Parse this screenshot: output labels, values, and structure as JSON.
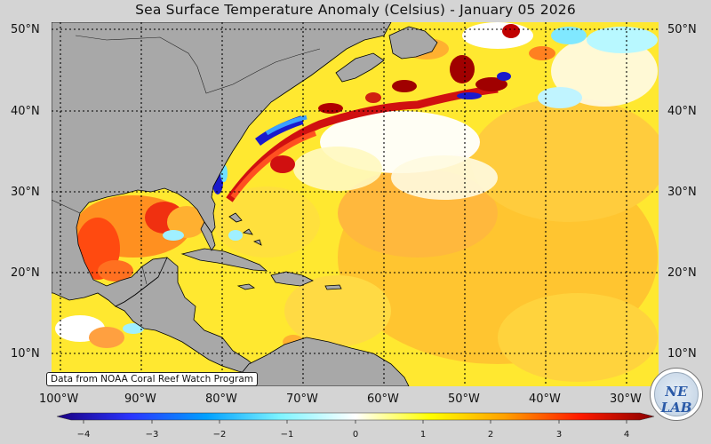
{
  "title": "Sea Surface Temperature Anomaly (Celsius) - January 05 2026",
  "latitude_labels": [
    "50°N",
    "40°N",
    "30°N",
    "20°N",
    "10°N"
  ],
  "longitude_labels": [
    "100°W",
    "90°W",
    "80°W",
    "70°W",
    "60°W",
    "50°W",
    "40°W",
    "30°W"
  ],
  "colorbar": {
    "unit": "Celsius",
    "min": -4,
    "max": 4,
    "ticks": [
      "−4",
      "−3",
      "−2",
      "−1",
      "0",
      "1",
      "2",
      "3",
      "4"
    ],
    "colors": [
      "#1a0080",
      "#2a35ff",
      "#00a0ff",
      "#7ff4ff",
      "#ffffff",
      "#ffff00",
      "#ffa000",
      "#ff1a00",
      "#8a0000"
    ]
  },
  "credit": "Data from NOAA Coral Reef Watch Program",
  "logo": {
    "text": "NE LAB"
  },
  "colors": {
    "land": "#a8a8a8",
    "background": "#d4d4d4",
    "coast": "#000000"
  }
}
